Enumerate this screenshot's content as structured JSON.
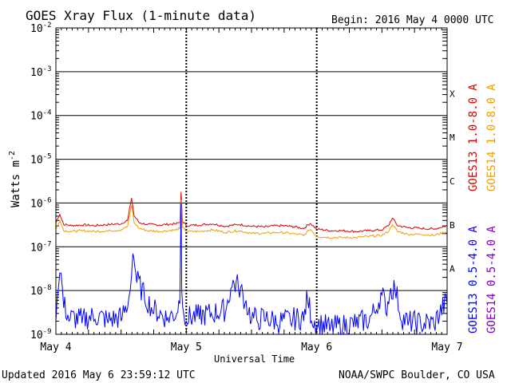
{
  "chart_data": {
    "type": "line",
    "title": "GOES Xray Flux (1-minute data)",
    "begin_label": "Begin:  2016 May 4 0000 UTC",
    "ylabel_text": "Watts m",
    "ylabel_exp": "-2",
    "xlabel": "Universal Time",
    "yscale": "log",
    "ylim": [
      1e-09,
      0.01
    ],
    "xlim": [
      0,
      3
    ],
    "y_ticks": [
      {
        "base": "10",
        "exp": "-2",
        "value": 0.01
      },
      {
        "base": "10",
        "exp": "-3",
        "value": 0.001
      },
      {
        "base": "10",
        "exp": "-4",
        "value": 0.0001
      },
      {
        "base": "10",
        "exp": "-5",
        "value": 1e-05
      },
      {
        "base": "10",
        "exp": "-6",
        "value": 1e-06
      },
      {
        "base": "10",
        "exp": "-7",
        "value": 1e-07
      },
      {
        "base": "10",
        "exp": "-8",
        "value": 1e-08
      },
      {
        "base": "10",
        "exp": "-9",
        "value": 1e-09
      }
    ],
    "x_ticks": [
      {
        "label": "May 4",
        "value": 0
      },
      {
        "label": "May 5",
        "value": 1
      },
      {
        "label": "May 6",
        "value": 2
      },
      {
        "label": "May 7",
        "value": 3
      }
    ],
    "flare_classes": [
      {
        "label": "X",
        "value": 0.0001
      },
      {
        "label": "M",
        "value": 1e-05
      },
      {
        "label": "C",
        "value": 1e-06
      },
      {
        "label": "B",
        "value": 1e-07
      },
      {
        "label": "A",
        "value": 1e-08
      }
    ],
    "series": [
      {
        "name": "GOES13 1.0-8.0 A",
        "color": "#e00000",
        "x": [
          0,
          0.03,
          0.06,
          0.12,
          0.2,
          0.3,
          0.42,
          0.5,
          0.55,
          0.58,
          0.6,
          0.64,
          0.7,
          0.8,
          0.92,
          0.95,
          0.96,
          0.97,
          1.0,
          1.1,
          1.2,
          1.3,
          1.4,
          1.5,
          1.6,
          1.7,
          1.8,
          1.9,
          1.95,
          2.0,
          2.1,
          2.2,
          2.3,
          2.4,
          2.5,
          2.55,
          2.58,
          2.62,
          2.7,
          2.8,
          2.9,
          3.0
        ],
        "values": [
          3.5e-07,
          5.5e-07,
          3.2e-07,
          3e-07,
          3.1e-07,
          3e-07,
          3.2e-07,
          3.3e-07,
          4e-07,
          1.3e-06,
          5e-07,
          3.5e-07,
          3.2e-07,
          3.1e-07,
          3.3e-07,
          3.6e-07,
          1.8e-06,
          3.8e-07,
          3e-07,
          3.1e-07,
          3.3e-07,
          2.9e-07,
          3.2e-07,
          2.9e-07,
          2.8e-07,
          3e-07,
          2.9e-07,
          2.6e-07,
          3.4e-07,
          2.5e-07,
          2.3e-07,
          2.3e-07,
          2.2e-07,
          2.3e-07,
          2.4e-07,
          3e-07,
          4.5e-07,
          3e-07,
          2.7e-07,
          2.6e-07,
          2.5e-07,
          3e-07
        ]
      },
      {
        "name": "GOES14 1.0-8.0 A",
        "color": "#f0a000",
        "x": [
          0,
          0.03,
          0.06,
          0.12,
          0.2,
          0.3,
          0.42,
          0.5,
          0.55,
          0.58,
          0.6,
          0.64,
          0.7,
          0.8,
          0.92,
          0.95,
          0.96,
          0.97,
          1.0,
          1.1,
          1.2,
          1.3,
          1.4,
          1.5,
          1.6,
          1.7,
          1.8,
          1.9,
          1.95,
          2.0,
          2.1,
          2.2,
          2.3,
          2.4,
          2.5,
          2.55,
          2.58,
          2.62,
          2.7,
          2.8,
          2.9,
          3.0
        ],
        "values": [
          2.5e-07,
          4e-07,
          2.3e-07,
          2.2e-07,
          2.3e-07,
          2.2e-07,
          2.3e-07,
          2.4e-07,
          2.9e-07,
          9e-07,
          3.5e-07,
          2.6e-07,
          2.3e-07,
          2.2e-07,
          2.4e-07,
          2.6e-07,
          1.2e-06,
          2.8e-07,
          2.2e-07,
          2.2e-07,
          2.4e-07,
          2.1e-07,
          2.3e-07,
          2e-07,
          2e-07,
          2.1e-07,
          2e-07,
          1.8e-07,
          2.5e-07,
          1.7e-07,
          1.6e-07,
          1.6e-07,
          1.6e-07,
          1.7e-07,
          1.8e-07,
          2.2e-07,
          3.2e-07,
          2.2e-07,
          1.9e-07,
          1.9e-07,
          1.8e-07,
          2.2e-07
        ]
      },
      {
        "name": "GOES13 0.5-4.0 A",
        "color": "#0000ff",
        "x": [
          0,
          0.02,
          0.04,
          0.06,
          0.1,
          0.2,
          0.3,
          0.4,
          0.5,
          0.55,
          0.57,
          0.59,
          0.62,
          0.68,
          0.75,
          0.85,
          0.92,
          0.95,
          0.96,
          0.965,
          0.98,
          1.0,
          1.1,
          1.2,
          1.3,
          1.35,
          1.4,
          1.45,
          1.5,
          1.55,
          1.6,
          1.7,
          1.8,
          1.9,
          1.93,
          1.96,
          2.0,
          2.1,
          2.2,
          2.3,
          2.4,
          2.45,
          2.5,
          2.53,
          2.56,
          2.6,
          2.65,
          2.7,
          2.8,
          2.9,
          3.0
        ],
        "values": [
          2e-09,
          1.2e-08,
          2.5e-08,
          4e-09,
          2e-09,
          1.8e-09,
          2.2e-09,
          1.8e-09,
          2e-09,
          4e-09,
          1e-08,
          7e-08,
          1.5e-08,
          6e-09,
          3e-09,
          2e-09,
          2.5e-09,
          5e-09,
          1e-06,
          1e-08,
          3e-09,
          2e-09,
          2.2e-09,
          2.5e-09,
          3e-09,
          1.2e-08,
          1.1e-08,
          5e-09,
          2e-09,
          1.8e-09,
          2e-09,
          1.6e-09,
          1.8e-09,
          2e-09,
          6e-09,
          2e-09,
          1.5e-09,
          1.2e-09,
          1.3e-09,
          1.5e-09,
          1.8e-09,
          3e-09,
          8e-09,
          3e-09,
          8e-09,
          1e-08,
          2e-09,
          1.6e-09,
          1.5e-09,
          1.5e-09,
          5e-09
        ]
      },
      {
        "name": "GOES14 0.5-4.0 A",
        "color": "#8000c0",
        "x": [],
        "values": []
      }
    ],
    "grid": true,
    "legend_placement": "right, vertical"
  },
  "footer": {
    "updated": "Updated 2016 May  6 23:59:12 UTC",
    "credit": "NOAA/SWPC Boulder, CO USA"
  }
}
